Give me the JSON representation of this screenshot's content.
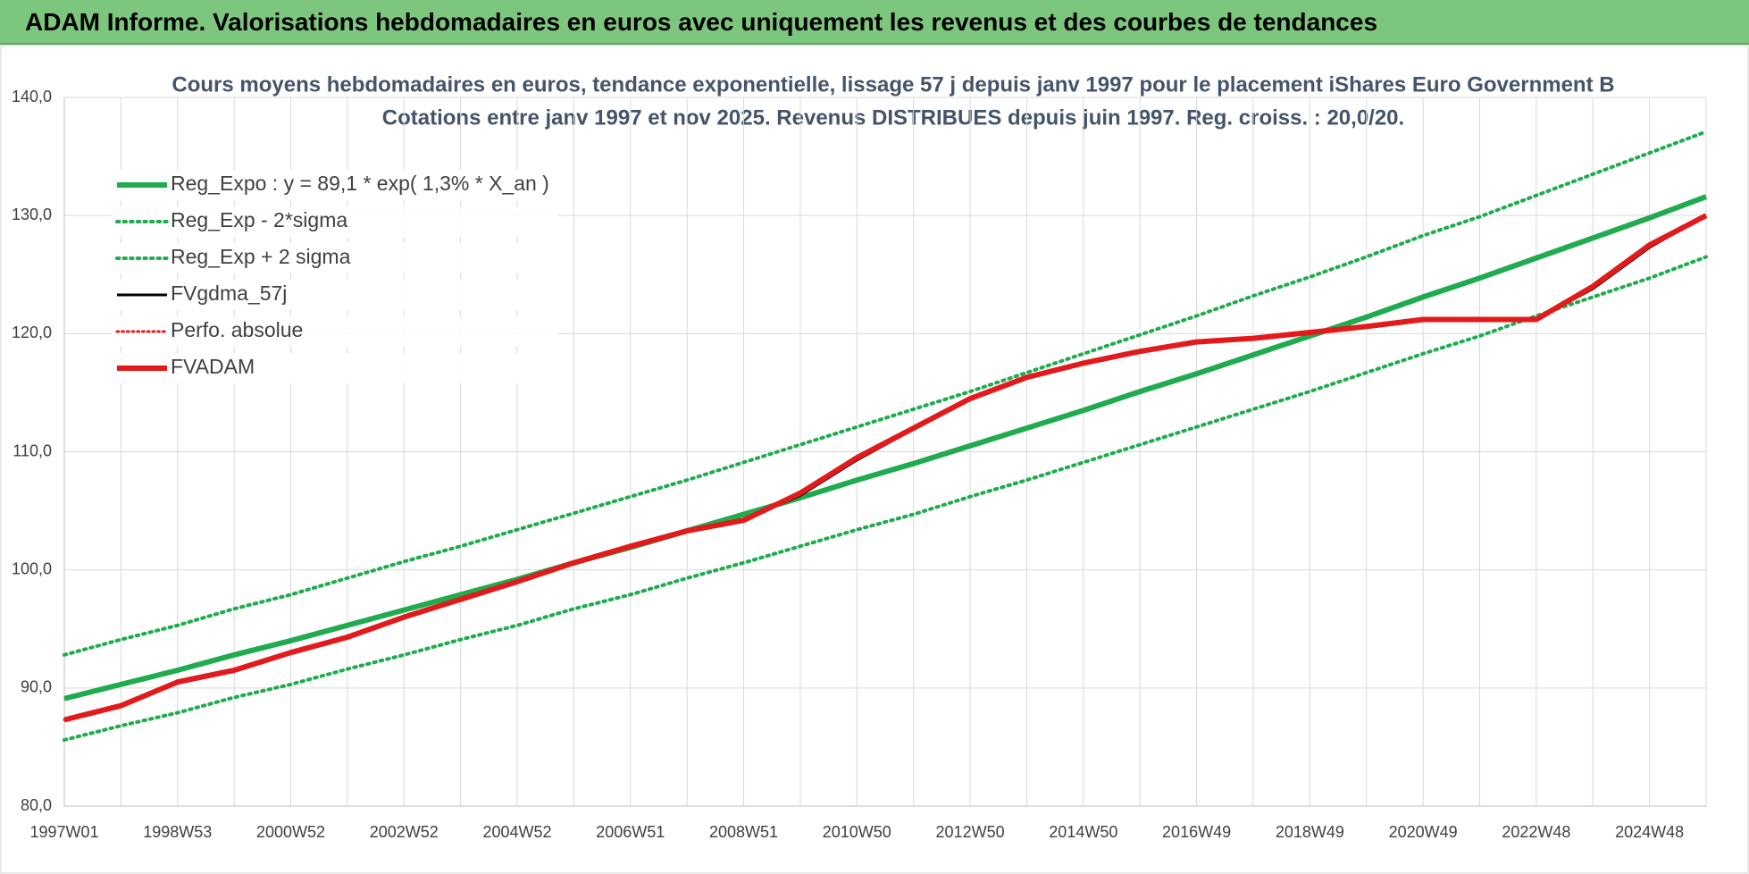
{
  "header": {
    "title": "ADAM Informe. Valorisations hebdomadaires en euros avec uniquement les revenus et des courbes de tendances"
  },
  "chart_data": {
    "type": "line",
    "title": "Cours moyens hebdomadaires en euros, tendance exponentielle, lissage 57 j depuis janv 1997 pour le placement iShares Euro Government B",
    "subtitle": "Cotations entre janv 1997 et nov 2025. Revenus DISTRIBUES depuis juin 1997. Reg. croiss. : 20,0/20.",
    "categories": [
      "1997W01",
      null,
      "1998W53",
      null,
      "2000W52",
      null,
      "2002W52",
      null,
      "2004W52",
      null,
      "2006W51",
      null,
      "2008W51",
      null,
      "2010W50",
      null,
      "2012W50",
      null,
      "2014W50",
      null,
      "2016W49",
      null,
      "2018W49",
      null,
      "2020W49",
      null,
      "2022W48",
      null,
      "2024W48",
      null
    ],
    "ylim": [
      80,
      140
    ],
    "yticks": [
      {
        "value": 80,
        "label": "80,0"
      },
      {
        "value": 90,
        "label": "90,0"
      },
      {
        "value": 100,
        "label": "100,0"
      },
      {
        "value": 110,
        "label": "110,0"
      },
      {
        "value": 120,
        "label": "120,0"
      },
      {
        "value": 130,
        "label": "130,0"
      },
      {
        "value": 140,
        "label": "140,0"
      }
    ],
    "grid": true,
    "legend": "top-left",
    "series": [
      {
        "name": "Reg_Expo : y = 89,1 * exp( 1,3% *  X_an )",
        "color": "#1fab4e",
        "style": "solid",
        "width": 6,
        "values": [
          89.1,
          90.3,
          91.5,
          92.8,
          94.0,
          95.3,
          96.6,
          97.9,
          99.2,
          100.6,
          101.9,
          103.3,
          104.7,
          106.1,
          107.6,
          109.0,
          110.5,
          112.0,
          113.5,
          115.1,
          116.6,
          118.2,
          119.8,
          121.4,
          123.1,
          124.7,
          126.4,
          128.1,
          129.8,
          131.6
        ]
      },
      {
        "name": "Reg_Exp - 2*sigma",
        "color": "#1fab4e",
        "style": "dotted",
        "width": 4,
        "values": [
          85.6,
          86.8,
          87.9,
          89.2,
          90.3,
          91.6,
          92.8,
          94.1,
          95.3,
          96.7,
          97.9,
          99.3,
          100.6,
          102.0,
          103.4,
          104.7,
          106.2,
          107.6,
          109.1,
          110.6,
          112.1,
          113.6,
          115.1,
          116.7,
          118.3,
          119.8,
          121.5,
          123.1,
          124.7,
          126.5
        ]
      },
      {
        "name": "Reg_Exp + 2 sigma",
        "color": "#1fab4e",
        "style": "dotted",
        "width": 4,
        "values": [
          92.8,
          94.1,
          95.3,
          96.7,
          97.9,
          99.3,
          100.7,
          102.0,
          103.4,
          104.8,
          106.2,
          107.6,
          109.1,
          110.6,
          112.1,
          113.6,
          115.1,
          116.7,
          118.3,
          119.9,
          121.5,
          123.2,
          124.8,
          126.5,
          128.3,
          129.9,
          131.7,
          133.5,
          135.3,
          137.1
        ]
      },
      {
        "name": "FVgdma_57j",
        "color": "#000000",
        "style": "solid",
        "width": 3,
        "values": [
          87.3,
          88.4,
          90.4,
          91.4,
          92.9,
          94.2,
          95.9,
          97.4,
          98.9,
          100.5,
          101.9,
          103.2,
          104.2,
          106.3,
          109.3,
          111.9,
          114.4,
          116.2,
          117.4,
          118.4,
          119.3,
          119.6,
          120.1,
          120.6,
          121.2,
          121.2,
          121.2,
          123.8,
          127.3,
          130.0
        ]
      },
      {
        "name": "Perfo. absolue",
        "color": "#e31a1c",
        "style": "dotted",
        "width": 3,
        "values": [
          87.3,
          88.5,
          90.5,
          91.5,
          93.0,
          94.3,
          96.0,
          97.5,
          99.0,
          100.6,
          102.0,
          103.3,
          104.2,
          106.5,
          109.5,
          112.0,
          114.5,
          116.3,
          117.5,
          118.5,
          119.3,
          119.6,
          120.1,
          120.6,
          121.2,
          121.2,
          121.2,
          124.0,
          127.5,
          130.0
        ]
      },
      {
        "name": "FVADAM",
        "color": "#e31a1c",
        "style": "solid",
        "width": 6,
        "values": [
          87.3,
          88.5,
          90.5,
          91.5,
          93.0,
          94.3,
          96.0,
          97.5,
          99.0,
          100.6,
          102.0,
          103.3,
          104.2,
          106.5,
          109.5,
          112.0,
          114.5,
          116.3,
          117.5,
          118.5,
          119.3,
          119.6,
          120.1,
          120.6,
          121.2,
          121.2,
          121.2,
          124.0,
          127.5,
          130.0
        ]
      }
    ]
  }
}
